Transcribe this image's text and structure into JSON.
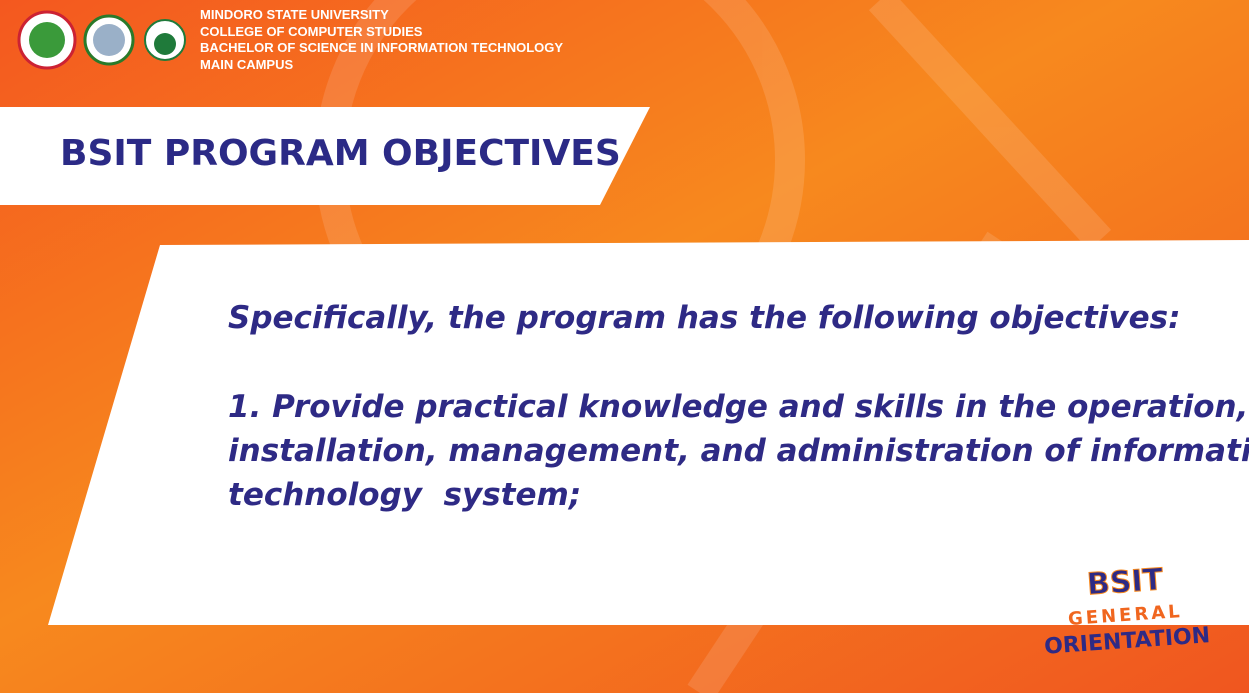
{
  "header": {
    "lines": [
      "MINDORO STATE UNIVERSITY",
      "COLLEGE OF COMPUTER STUDIES",
      "BACHELOR OF SCIENCE IN INFORMATION TECHNOLOGY",
      "MAIN CAMPUS"
    ]
  },
  "title": "BSIT PROGRAM OBJECTIVES",
  "content": {
    "intro": "Specifically, the program has the following objectives:",
    "objective_lines": [
      "1. Provide practical knowledge and skills in the operation,",
      "installation, management, and administration of information",
      "technology  system;"
    ]
  },
  "badge": {
    "line1": "BSIT",
    "line2": "GENERAL",
    "line3": "ORIENTATION"
  }
}
